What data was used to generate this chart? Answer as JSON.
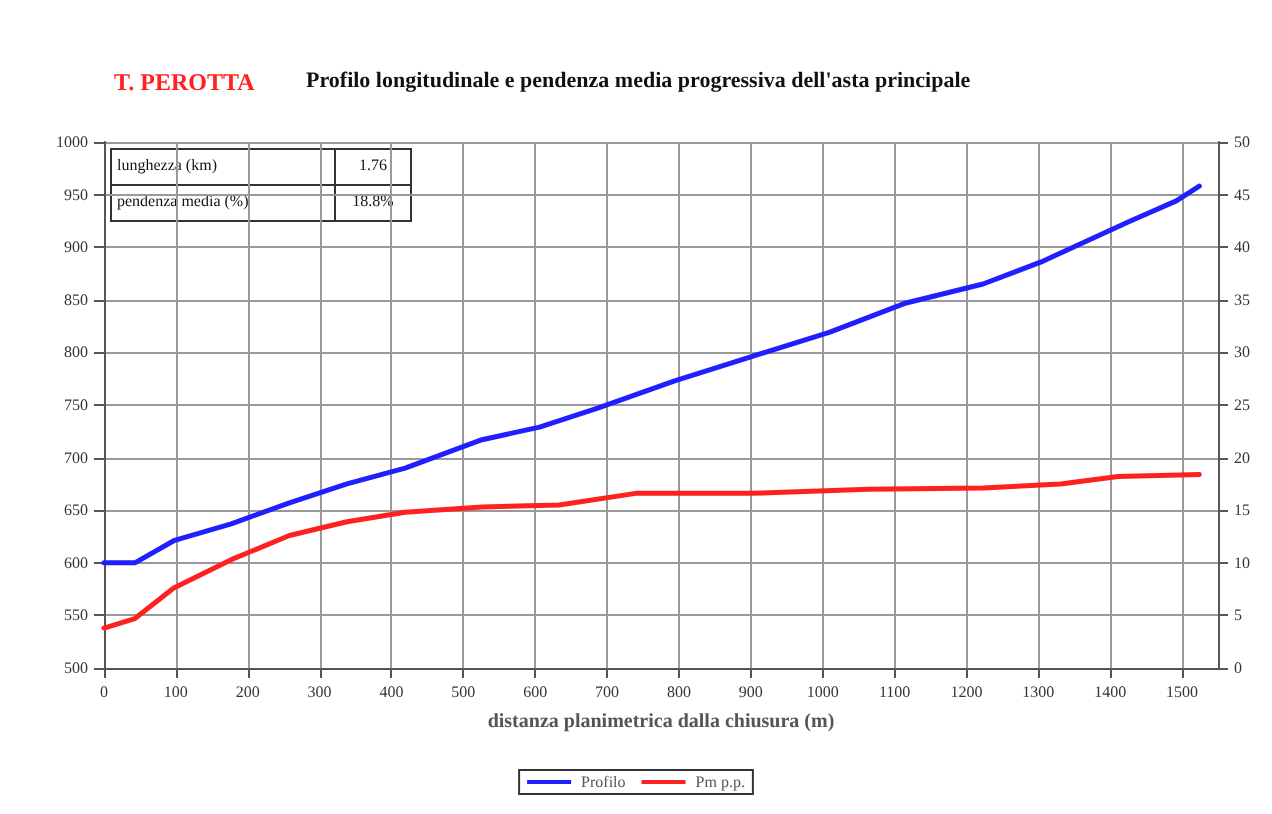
{
  "chart_data": {
    "type": "line",
    "title": "T. PEROTTA",
    "subtitle": "Profilo longitudinale e pendenza media progressiva dell'asta principale",
    "xlabel": "distanza planimetrica dalla chiusura (m)",
    "annotations": [
      "lunghezza (km)",
      "1.76",
      "pendenza media (%)",
      "18.8%"
    ],
    "series": [
      {
        "name": "Profilo",
        "color": "#1f1fff",
        "x": [
          0,
          43,
          97,
          177,
          258,
          338,
          419,
          526,
          606,
          687,
          794,
          901,
          1009,
          1116,
          1223,
          1304,
          1425,
          1492,
          1524
        ],
        "values": [
          600,
          600,
          621,
          637,
          657,
          675,
          690,
          717,
          729,
          747,
          773,
          796,
          819,
          847,
          865,
          886,
          924,
          944,
          958
        ]
      },
      {
        "name": "Pm p.p.",
        "color": "#ff2020",
        "axis": "y2",
        "x": [
          0,
          43,
          97,
          177,
          258,
          338,
          419,
          526,
          633,
          740,
          901,
          1063,
          1223,
          1331,
          1411,
          1524
        ],
        "values": [
          3.8,
          4.7,
          7.6,
          10.3,
          12.6,
          13.9,
          14.8,
          15.3,
          15.5,
          16.6,
          16.6,
          17.0,
          17.1,
          17.5,
          18.2,
          18.4
        ]
      }
    ],
    "xlim": [
      0,
      1550
    ],
    "xticks": [
      0,
      100,
      200,
      300,
      400,
      500,
      600,
      700,
      800,
      900,
      1000,
      1100,
      1200,
      1300,
      1400,
      1500
    ],
    "ylim": [
      500,
      1000
    ],
    "yticks": [
      500,
      550,
      600,
      650,
      700,
      750,
      800,
      850,
      900,
      950,
      1000
    ],
    "y2lim": [
      0,
      50
    ],
    "y2ticks": [
      0,
      5,
      10,
      15,
      20,
      25,
      30,
      35,
      40,
      45,
      50
    ],
    "grid": true,
    "legend": "bottom",
    "marker": "none",
    "line_style": "solid"
  }
}
